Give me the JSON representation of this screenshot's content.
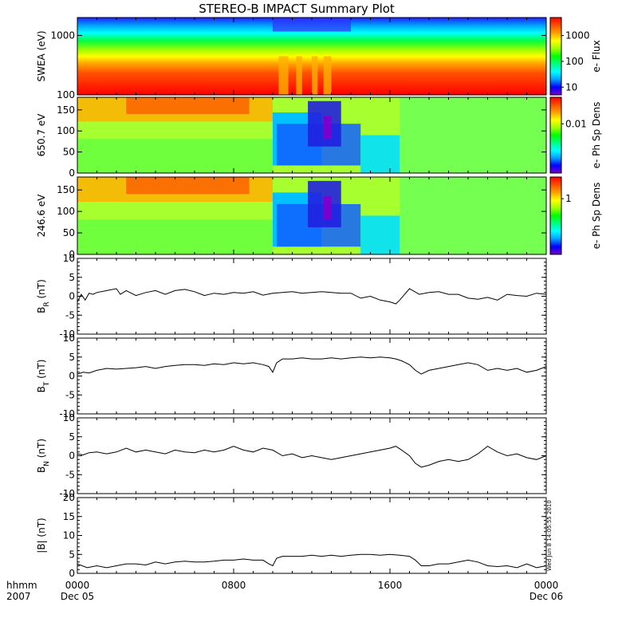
{
  "title": "STEREO-B IMPACT Summary Plot",
  "time_axis": {
    "row1_label": "hhmm",
    "row2_label": "2007",
    "ticks": [
      {
        "t": 0,
        "hhmm": "0000",
        "date": "Dec 05"
      },
      {
        "t": 8,
        "hhmm": "0800",
        "date": ""
      },
      {
        "t": 16,
        "hhmm": "1600",
        "date": ""
      },
      {
        "t": 24,
        "hhmm": "0000",
        "date": "Dec 06"
      }
    ]
  },
  "stamp": "Wed Jun  8 14:05:55 2010",
  "colors": {
    "rainbow": [
      "#7a00d0",
      "#0000ff",
      "#00a0ff",
      "#00ffff",
      "#00ff80",
      "#00ff00",
      "#a0ff00",
      "#ffff00",
      "#ffa000",
      "#ff5000",
      "#ff0000"
    ],
    "frame": "#000000"
  },
  "chart_data": [
    {
      "type": "heatmap",
      "name": "swea-spectrogram",
      "ylabel": "SWEA (eV)",
      "yscale": "log",
      "ylim": [
        100,
        2000
      ],
      "ytick_values": [
        100,
        1000
      ],
      "ytick_labels": [
        "100",
        "1000"
      ],
      "x_range_hours": [
        0,
        24
      ],
      "colorbar": {
        "label": "e- Flux",
        "scale": "log",
        "tick_values": [
          10,
          100,
          1000
        ],
        "tick_labels": [
          "10",
          "100",
          "1000"
        ]
      }
    },
    {
      "type": "heatmap",
      "name": "pad-650",
      "ylabel": "650.7 eV",
      "ylim": [
        0,
        180
      ],
      "ytick_values": [
        0,
        50,
        100,
        150
      ],
      "ytick_labels": [
        "0",
        "50",
        "100",
        "150"
      ],
      "x_range_hours": [
        0,
        24
      ],
      "colorbar": {
        "label": "e- Ph Sp Dens",
        "scale": "log",
        "tick_values": [
          0.01
        ],
        "tick_labels": [
          "0.01"
        ]
      }
    },
    {
      "type": "heatmap",
      "name": "pad-246",
      "ylabel": "246.6 eV",
      "ylim": [
        0,
        180
      ],
      "ytick_values": [
        0,
        50,
        100,
        150
      ],
      "ytick_labels": [
        "0",
        "50",
        "100",
        "150"
      ],
      "x_range_hours": [
        0,
        24
      ],
      "colorbar": {
        "label": "e- Ph Sp Dens",
        "scale": "log",
        "tick_values": [
          1
        ],
        "tick_labels": [
          "1"
        ]
      }
    },
    {
      "type": "line",
      "name": "br",
      "ylabel_main": "B",
      "ylabel_sub": "R",
      "ylabel_unit": " (nT)",
      "ylim": [
        -10,
        10
      ],
      "ytick_values": [
        -10,
        -5,
        0,
        5,
        10
      ],
      "ytick_labels": [
        "-10",
        "-5",
        "0",
        "5",
        "10"
      ],
      "x": [
        0,
        0.2,
        0.4,
        0.6,
        0.8,
        1.0,
        1.5,
        2.0,
        2.2,
        2.5,
        3.0,
        3.5,
        4.0,
        4.5,
        5.0,
        5.5,
        6.0,
        6.5,
        7.0,
        7.5,
        8.0,
        8.5,
        9.0,
        9.5,
        10.0,
        10.5,
        11.0,
        11.5,
        12.0,
        12.5,
        13.0,
        13.5,
        14.0,
        14.5,
        15.0,
        15.5,
        16.0,
        16.3,
        16.5,
        17.0,
        17.5,
        18.0,
        18.5,
        19.0,
        19.5,
        20.0,
        20.5,
        21.0,
        21.5,
        22.0,
        22.5,
        23.0,
        23.5,
        24.0
      ],
      "y": [
        -1.5,
        0.5,
        -1.0,
        0.8,
        0.5,
        1.0,
        1.5,
        2.0,
        0.5,
        1.5,
        0.2,
        1.0,
        1.5,
        0.5,
        1.5,
        1.8,
        1.2,
        0.2,
        0.8,
        0.5,
        1.0,
        0.8,
        1.2,
        0.3,
        0.8,
        1.0,
        1.2,
        0.8,
        1.0,
        1.2,
        1.0,
        0.8,
        0.8,
        -0.5,
        0.0,
        -1.0,
        -1.5,
        -2.0,
        -1.0,
        2.0,
        0.5,
        1.0,
        1.2,
        0.5,
        0.5,
        -0.5,
        -0.8,
        -0.3,
        -1.0,
        0.5,
        0.2,
        0.0,
        0.8,
        0.5
      ]
    },
    {
      "type": "line",
      "name": "bt",
      "ylabel_main": "B",
      "ylabel_sub": "T",
      "ylabel_unit": " (nT)",
      "ylim": [
        -10,
        10
      ],
      "ytick_values": [
        -10,
        -5,
        0,
        5,
        10
      ],
      "ytick_labels": [
        "-10",
        "-5",
        "0",
        "5",
        "10"
      ],
      "x": [
        0,
        0.3,
        0.6,
        1.0,
        1.5,
        2.0,
        2.5,
        3.0,
        3.5,
        4.0,
        4.5,
        5.0,
        5.5,
        6.0,
        6.5,
        7.0,
        7.5,
        8.0,
        8.5,
        9.0,
        9.5,
        9.8,
        10.0,
        10.2,
        10.5,
        11.0,
        11.5,
        12.0,
        12.5,
        13.0,
        13.5,
        14.0,
        14.5,
        15.0,
        15.5,
        16.0,
        16.3,
        16.6,
        17.0,
        17.3,
        17.6,
        18.0,
        18.5,
        19.0,
        19.5,
        20.0,
        20.5,
        21.0,
        21.5,
        22.0,
        22.5,
        23.0,
        23.5,
        24.0
      ],
      "y": [
        0.5,
        1.0,
        0.8,
        1.5,
        2.0,
        1.8,
        2.0,
        2.2,
        2.5,
        2.0,
        2.5,
        2.8,
        3.0,
        3.0,
        2.8,
        3.2,
        3.0,
        3.5,
        3.2,
        3.5,
        3.0,
        2.5,
        1.0,
        3.5,
        4.5,
        4.5,
        4.8,
        4.5,
        4.5,
        4.8,
        4.5,
        4.8,
        5.0,
        4.8,
        5.0,
        4.8,
        4.5,
        4.0,
        3.0,
        1.5,
        0.5,
        1.5,
        2.0,
        2.5,
        3.0,
        3.5,
        3.0,
        1.5,
        2.0,
        1.5,
        2.0,
        1.0,
        1.5,
        2.5
      ]
    },
    {
      "type": "line",
      "name": "bn",
      "ylabel_main": "B",
      "ylabel_sub": "N",
      "ylabel_unit": " (nT)",
      "ylim": [
        -10,
        10
      ],
      "ytick_values": [
        -10,
        -5,
        0,
        5,
        10
      ],
      "ytick_labels": [
        "-10",
        "-5",
        "0",
        "5",
        "10"
      ],
      "x": [
        0,
        0.3,
        0.6,
        1.0,
        1.5,
        2.0,
        2.5,
        3.0,
        3.5,
        4.0,
        4.5,
        5.0,
        5.5,
        6.0,
        6.5,
        7.0,
        7.5,
        8.0,
        8.5,
        9.0,
        9.5,
        10.0,
        10.5,
        11.0,
        11.5,
        12.0,
        12.5,
        13.0,
        13.5,
        14.0,
        14.5,
        15.0,
        15.5,
        16.0,
        16.3,
        16.6,
        17.0,
        17.3,
        17.6,
        18.0,
        18.5,
        19.0,
        19.5,
        20.0,
        20.5,
        21.0,
        21.5,
        22.0,
        22.5,
        23.0,
        23.5,
        24.0
      ],
      "y": [
        0.5,
        0.2,
        0.8,
        1.0,
        0.5,
        1.0,
        2.0,
        1.0,
        1.5,
        1.0,
        0.5,
        1.5,
        1.0,
        0.8,
        1.5,
        1.0,
        1.5,
        2.5,
        1.5,
        1.0,
        2.0,
        1.5,
        0.0,
        0.5,
        -0.5,
        0.0,
        -0.5,
        -1.0,
        -0.5,
        0.0,
        0.5,
        1.0,
        1.5,
        2.0,
        2.5,
        1.5,
        0.0,
        -2.0,
        -3.0,
        -2.5,
        -1.5,
        -1.0,
        -1.5,
        -1.0,
        0.5,
        2.5,
        1.0,
        0.0,
        0.5,
        -0.5,
        -1.0,
        0.0
      ]
    },
    {
      "type": "line",
      "name": "bmag",
      "ylabel_main": "|B|",
      "ylabel_sub": "",
      "ylabel_unit": " (nT)",
      "ylim": [
        0,
        20
      ],
      "ytick_values": [
        0,
        5,
        10,
        15,
        20
      ],
      "ytick_labels": [
        "0",
        "5",
        "10",
        "15",
        "20"
      ],
      "x": [
        0,
        0.5,
        1.0,
        1.5,
        2.0,
        2.5,
        3.0,
        3.5,
        4.0,
        4.5,
        5.0,
        5.5,
        6.0,
        6.5,
        7.0,
        7.5,
        8.0,
        8.5,
        9.0,
        9.5,
        9.8,
        10.0,
        10.2,
        10.5,
        11.0,
        11.5,
        12.0,
        12.5,
        13.0,
        13.5,
        14.0,
        14.5,
        15.0,
        15.5,
        16.0,
        16.5,
        17.0,
        17.3,
        17.6,
        18.0,
        18.5,
        19.0,
        19.5,
        20.0,
        20.5,
        21.0,
        21.5,
        22.0,
        22.5,
        23.0,
        23.5,
        24.0
      ],
      "y": [
        2.5,
        1.5,
        2.0,
        1.5,
        2.0,
        2.5,
        2.5,
        2.2,
        3.0,
        2.5,
        3.0,
        3.2,
        3.0,
        3.0,
        3.2,
        3.5,
        3.5,
        3.8,
        3.5,
        3.5,
        2.5,
        2.0,
        4.0,
        4.5,
        4.5,
        4.5,
        4.8,
        4.5,
        4.8,
        4.5,
        4.8,
        5.0,
        5.0,
        4.8,
        5.0,
        4.8,
        4.5,
        3.5,
        2.0,
        2.0,
        2.5,
        2.5,
        3.0,
        3.5,
        3.0,
        2.0,
        1.8,
        2.0,
        1.5,
        2.5,
        1.5,
        2.0
      ]
    }
  ]
}
